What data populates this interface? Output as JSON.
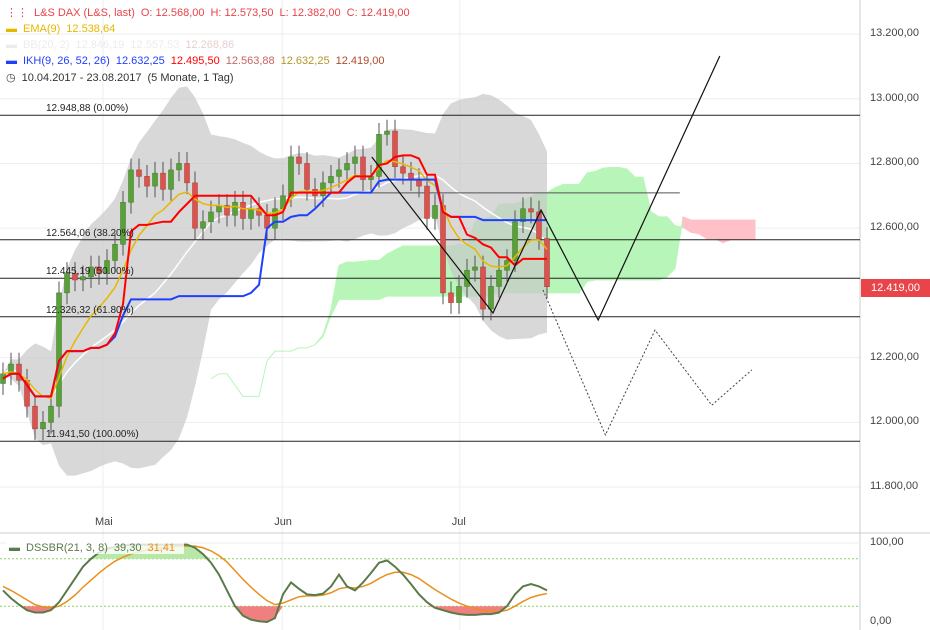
{
  "legend": {
    "main": {
      "label": "L&S DAX (L&S, last)",
      "o": "O: 12.568,00",
      "h": "H: 12.573,50",
      "l": "L: 12.382,00",
      "c": "C: 12.419,00",
      "color": "#e8444a"
    },
    "ema": {
      "label": "EMA(9)",
      "value": "12.538,64",
      "color": "#e6b800"
    },
    "bb": {
      "label": "BB(20, 2)",
      "values": [
        "12.846,19",
        "12.557,53",
        "12.268,86"
      ],
      "color": "#eeeeee"
    },
    "ikh": {
      "label": "IKH(9, 26, 52, 26)",
      "values": [
        "12.632,25",
        "12.495,50",
        "12.563,88",
        "12.632,25",
        "12.419,00"
      ],
      "colors": [
        "#1f3fff",
        "#ff0000",
        "#c86464",
        "#b8962a",
        "#b04a2a"
      ]
    },
    "range": {
      "text": "10.04.2017 - 23.08.2017",
      "duration": "(5 Monate, 1 Tag)"
    }
  },
  "osc_legend": {
    "label": "DSSBR(21, 3, 8)",
    "v1": "39,30",
    "v2": "31,41",
    "c1": "#5a7a4a",
    "c2": "#e8901a"
  },
  "chart_data": {
    "type": "candlestick",
    "y_ticks": [
      "13.200,00",
      "13.000,00",
      "12.800,00",
      "12.600,00",
      "12.200,00",
      "12.000,00",
      "11.800,00"
    ],
    "y_tick_values": [
      13200,
      13000,
      12800,
      12600,
      12200,
      12000,
      11800
    ],
    "ylim": [
      11800,
      13200
    ],
    "x_ticks": [
      {
        "label": "Mai",
        "index": 12.5
      },
      {
        "label": "Jun",
        "index": 34.9
      },
      {
        "label": "Jul",
        "index": 57.1
      }
    ],
    "last_price": "12.419,00",
    "fib_levels": [
      {
        "label": "12.948,88 (0.00%)",
        "value": 12948.88
      },
      {
        "label": "12.564,06 (38.20%)",
        "value": 12564.06
      },
      {
        "label": "12.445,19 (50.00%)",
        "value": 12445.19
      },
      {
        "label": "12.326,32 (61.80%)",
        "value": 12326.32
      },
      {
        "label": "11.941,50 (100.00%)",
        "value": 11941.5
      }
    ],
    "closes": [
      12150,
      12180,
      12130,
      12050,
      11980,
      12000,
      12050,
      12400,
      12460,
      12440,
      12450,
      12480,
      12460,
      12500,
      12550,
      12680,
      12780,
      12760,
      12730,
      12770,
      12720,
      12780,
      12800,
      12740,
      12600,
      12620,
      12650,
      12670,
      12640,
      12680,
      12630,
      12660,
      12640,
      12600,
      12660,
      12700,
      12820,
      12800,
      12720,
      12700,
      12740,
      12760,
      12780,
      12800,
      12820,
      12750,
      12760,
      12890,
      12900,
      12790,
      12770,
      12750,
      12730,
      12630,
      12670,
      12400,
      12370,
      12420,
      12470,
      12480,
      12350,
      12420,
      12470,
      12500,
      12620,
      12660,
      12650,
      12568,
      12419
    ],
    "first_open": 12120,
    "hl_pad": 35,
    "ema_period": 9,
    "bb_period": 20,
    "bb_mult": 2,
    "ikh": [
      9,
      26,
      52,
      26
    ],
    "trend_line": {
      "value": 12709,
      "from": 45.9,
      "to": 84.6
    },
    "projection_solid": [
      [
        46.1,
        12820
      ],
      [
        61.25,
        12338
      ],
      [
        67.25,
        12656
      ],
      [
        74.4,
        12316
      ],
      [
        89.6,
        13132
      ]
    ],
    "projection_dotted": [
      [
        67.5,
        12409
      ],
      [
        75.3,
        11961
      ],
      [
        81.5,
        12285
      ],
      [
        88.6,
        12053
      ],
      [
        93.6,
        12162
      ]
    ],
    "osc": {
      "y_ticks": [
        "100,00",
        "0,00"
      ],
      "levels": [
        80,
        20
      ],
      "dss": [
        40,
        30,
        22,
        15,
        12,
        12,
        15,
        25,
        40,
        55,
        70,
        80,
        88,
        93,
        95,
        97,
        98,
        98,
        98,
        98,
        98,
        98,
        98,
        98,
        94,
        86,
        75,
        60,
        40,
        20,
        8,
        3,
        1,
        0,
        5,
        35,
        50,
        42,
        35,
        34,
        36,
        45,
        60,
        45,
        40,
        50,
        62,
        75,
        78,
        70,
        60,
        48,
        35,
        25,
        18,
        15,
        12,
        10,
        9,
        9,
        10,
        10,
        12,
        20,
        35,
        45,
        48,
        45,
        40
      ],
      "signal": [
        45,
        40,
        34,
        28,
        22,
        19,
        18,
        20,
        26,
        34,
        44,
        53,
        62,
        70,
        77,
        82,
        86,
        89,
        91,
        93,
        94,
        95,
        96,
        96,
        96,
        94,
        90,
        84,
        76,
        65,
        54,
        44,
        35,
        27,
        22,
        24,
        28,
        32,
        33,
        33,
        34,
        37,
        42,
        44,
        43,
        45,
        49,
        55,
        60,
        63,
        63,
        60,
        55,
        48,
        41,
        35,
        29,
        24,
        20,
        17,
        15,
        14,
        13,
        15,
        20,
        26,
        31,
        34,
        36
      ]
    }
  }
}
